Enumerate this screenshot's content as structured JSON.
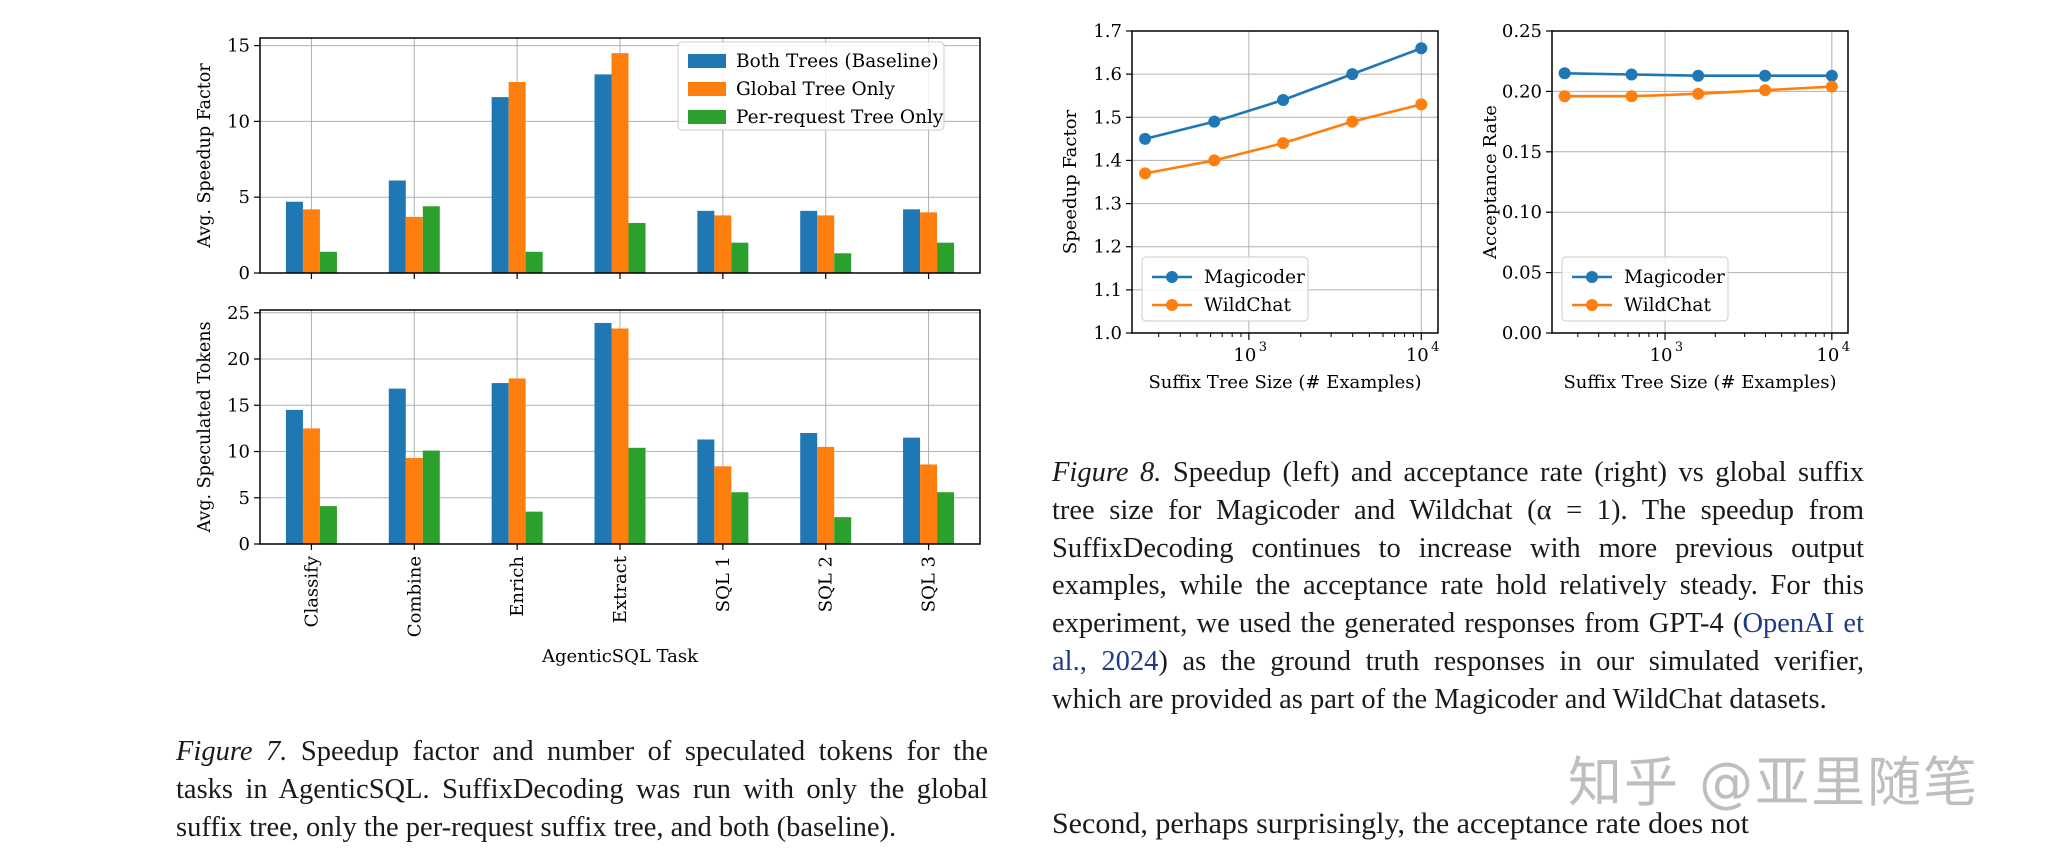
{
  "figure7": {
    "caption_label": "Figure 7.",
    "caption_text": "Speedup factor and number of speculated tokens for the tasks in AgenticSQL. SuffixDecoding was run with only the global suffix tree, only the per-request suffix tree, and both (baseline)."
  },
  "figure8": {
    "caption_label": "Figure 8.",
    "caption_part1": "Speedup (left) and acceptance rate (right) vs global suffix tree size for Magicoder and Wildchat (α = 1).  The speedup from SuffixDecoding continues to increase with more previous output examples, while the acceptance rate hold relatively steady.  For this experiment, we used the generated responses from GPT-4 (",
    "citation": "OpenAI et al., 2024",
    "caption_part2": ") as the ground truth responses in our simulated verifier, which are provided as part of the Magicoder and WildChat datasets."
  },
  "body_text": "Second, perhaps surprisingly, the acceptance rate does not",
  "watermark": "知乎 @亚里随笔",
  "chart_data": [
    {
      "id": "fig7-top",
      "type": "bar",
      "title": "",
      "xlabel": "",
      "ylabel": "Avg. Speedup Factor",
      "ylim": [
        0,
        15.5
      ],
      "yticks": [
        0,
        5,
        10,
        15
      ],
      "grid": true,
      "legend_position": "top-right",
      "categories": [
        "Classify",
        "Combine",
        "Enrich",
        "Extract",
        "SQL 1",
        "SQL 2",
        "SQL 3"
      ],
      "show_category_labels": false,
      "series": [
        {
          "name": "Both Trees (Baseline)",
          "color": "#1f77b4",
          "values": [
            4.7,
            6.1,
            11.6,
            13.1,
            4.1,
            4.1,
            4.2
          ]
        },
        {
          "name": "Global Tree Only",
          "color": "#ff7f0e",
          "values": [
            4.2,
            3.7,
            12.6,
            14.5,
            3.8,
            3.8,
            4.0
          ]
        },
        {
          "name": "Per-request Tree Only",
          "color": "#2ca02c",
          "values": [
            1.4,
            4.4,
            1.4,
            3.3,
            2.0,
            1.3,
            2.0
          ]
        }
      ]
    },
    {
      "id": "fig7-bottom",
      "type": "bar",
      "title": "",
      "xlabel": "AgenticSQL Task",
      "ylabel": "Avg. Speculated Tokens",
      "ylim": [
        0,
        25.3
      ],
      "yticks": [
        0,
        5,
        10,
        15,
        20,
        25
      ],
      "grid": true,
      "categories": [
        "Classify",
        "Combine",
        "Enrich",
        "Extract",
        "SQL 1",
        "SQL 2",
        "SQL 3"
      ],
      "show_category_labels": true,
      "series": [
        {
          "name": "Both Trees (Baseline)",
          "color": "#1f77b4",
          "values": [
            14.5,
            16.8,
            17.4,
            23.9,
            11.3,
            12.0,
            11.5
          ]
        },
        {
          "name": "Global Tree Only",
          "color": "#ff7f0e",
          "values": [
            12.5,
            9.3,
            17.9,
            23.3,
            8.4,
            10.5,
            8.6
          ]
        },
        {
          "name": "Per-request Tree Only",
          "color": "#2ca02c",
          "values": [
            4.1,
            10.1,
            3.5,
            10.4,
            5.6,
            2.9,
            5.6
          ]
        }
      ]
    },
    {
      "id": "fig8-left",
      "type": "line",
      "xscale": "log",
      "xlabel": "Suffix Tree Size (# Examples)",
      "ylabel": "Speedup Factor",
      "xlim": [
        210,
        12500
      ],
      "ylim": [
        1.0,
        1.7
      ],
      "xticks": [
        1000,
        10000
      ],
      "xtick_labels": [
        "10",
        "10"
      ],
      "xtick_exponents": [
        "3",
        "4"
      ],
      "yticks": [
        1.0,
        1.1,
        1.2,
        1.3,
        1.4,
        1.5,
        1.6,
        1.7
      ],
      "ytick_labels": [
        "1.0",
        "1.1",
        "1.2",
        "1.3",
        "1.4",
        "1.5",
        "1.6",
        "1.7"
      ],
      "grid": true,
      "legend_position": "bottom-left",
      "x": [
        250,
        630,
        1580,
        3980,
        10000
      ],
      "series": [
        {
          "name": "Magicoder",
          "color": "#1f77b4",
          "values": [
            1.45,
            1.49,
            1.54,
            1.6,
            1.66
          ]
        },
        {
          "name": "WildChat",
          "color": "#ff7f0e",
          "values": [
            1.37,
            1.4,
            1.44,
            1.49,
            1.53
          ]
        }
      ]
    },
    {
      "id": "fig8-right",
      "type": "line",
      "xscale": "log",
      "xlabel": "Suffix Tree Size (# Examples)",
      "ylabel": "Acceptance Rate",
      "xlim": [
        210,
        12500
      ],
      "ylim": [
        0,
        0.25
      ],
      "xticks": [
        1000,
        10000
      ],
      "xtick_labels": [
        "10",
        "10"
      ],
      "xtick_exponents": [
        "3",
        "4"
      ],
      "yticks": [
        0,
        0.05,
        0.1,
        0.15,
        0.2,
        0.25
      ],
      "ytick_labels": [
        "0.00",
        "0.05",
        "0.10",
        "0.15",
        "0.20",
        "0.25"
      ],
      "grid": true,
      "legend_position": "bottom-left",
      "x": [
        250,
        630,
        1580,
        3980,
        10000
      ],
      "series": [
        {
          "name": "Magicoder",
          "color": "#1f77b4",
          "values": [
            0.215,
            0.214,
            0.213,
            0.213,
            0.213
          ]
        },
        {
          "name": "WildChat",
          "color": "#ff7f0e",
          "values": [
            0.196,
            0.196,
            0.198,
            0.201,
            0.204
          ]
        }
      ]
    }
  ]
}
